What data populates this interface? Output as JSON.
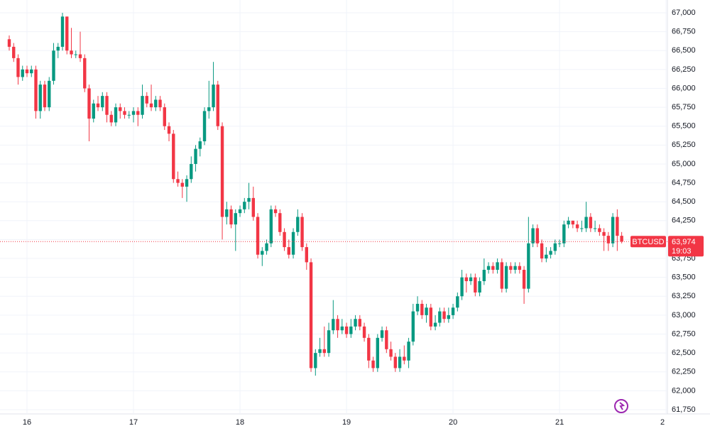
{
  "chart_data": {
    "type": "candlestick",
    "up_color": "#089981",
    "down_color": "#f23645",
    "grid": true,
    "xlim": [
      -4.8,
      143.5
    ],
    "ylim": [
      61750,
      67000
    ],
    "xticks": [
      {
        "value": 0,
        "label": "16"
      },
      {
        "value": 24,
        "label": "17"
      },
      {
        "value": 48,
        "label": "18"
      },
      {
        "value": 72,
        "label": "19"
      },
      {
        "value": 96,
        "label": "20"
      },
      {
        "value": 120,
        "label": "21"
      },
      {
        "value": 144,
        "label": "2"
      }
    ],
    "yticks": [
      {
        "value": 61750,
        "label": "61,750"
      },
      {
        "value": 62000,
        "label": "62,000"
      },
      {
        "value": 62250,
        "label": "62,250"
      },
      {
        "value": 62500,
        "label": "62,500"
      },
      {
        "value": 62750,
        "label": "62,750"
      },
      {
        "value": 63000,
        "label": "63,000"
      },
      {
        "value": 63250,
        "label": "63,250"
      },
      {
        "value": 63500,
        "label": "63,500"
      },
      {
        "value": 63750,
        "label": "63,750"
      },
      {
        "value": 64000,
        "label": "64,000"
      },
      {
        "value": 64250,
        "label": "64,250"
      },
      {
        "value": 64500,
        "label": "64,500"
      },
      {
        "value": 64750,
        "label": "64,750"
      },
      {
        "value": 65000,
        "label": "65,000"
      },
      {
        "value": 65250,
        "label": "65,250"
      },
      {
        "value": 65500,
        "label": "65,500"
      },
      {
        "value": 65750,
        "label": "65,750"
      },
      {
        "value": 66000,
        "label": "66,000"
      },
      {
        "value": 66250,
        "label": "66,250"
      },
      {
        "value": 66500,
        "label": "66,500"
      },
      {
        "value": 66750,
        "label": "66,750"
      },
      {
        "value": 67000,
        "label": "67,000"
      }
    ],
    "x": [
      -4,
      -3,
      -2,
      -1,
      0,
      1,
      2,
      3,
      4,
      5,
      6,
      7,
      8,
      9,
      10,
      11,
      12,
      13,
      14,
      15,
      16,
      17,
      18,
      19,
      20,
      21,
      22,
      23,
      24,
      25,
      26,
      27,
      28,
      29,
      30,
      31,
      32,
      33,
      34,
      35,
      36,
      37,
      38,
      39,
      40,
      41,
      42,
      43,
      44,
      45,
      46,
      47,
      48,
      49,
      50,
      51,
      52,
      53,
      54,
      55,
      56,
      57,
      58,
      59,
      60,
      61,
      62,
      63,
      64,
      65,
      66,
      67,
      68,
      69,
      70,
      71,
      72,
      73,
      74,
      75,
      76,
      77,
      78,
      79,
      80,
      81,
      82,
      83,
      84,
      85,
      86,
      87,
      88,
      89,
      90,
      91,
      92,
      93,
      94,
      95,
      96,
      97,
      98,
      99,
      100,
      101,
      102,
      103,
      104,
      105,
      106,
      107,
      108,
      109,
      110,
      111,
      112,
      113,
      114,
      115,
      116,
      117,
      118,
      119,
      120,
      121,
      122,
      123,
      124,
      125,
      126,
      127,
      128,
      129,
      130,
      131,
      132,
      133,
      134
    ],
    "series": [
      {
        "name": "BTCUSD",
        "last_label": "63,974",
        "countdown": "19:03",
        "ohlc": [
          [
            66650,
            66700,
            66500,
            66550
          ],
          [
            66550,
            66600,
            66350,
            66400
          ],
          [
            66400,
            66450,
            66050,
            66150
          ],
          [
            66150,
            66300,
            66100,
            66250
          ],
          [
            66250,
            66300,
            66150,
            66200
          ],
          [
            66200,
            66300,
            66150,
            66250
          ],
          [
            66250,
            66300,
            65600,
            65700
          ],
          [
            65700,
            66100,
            65600,
            66050
          ],
          [
            66050,
            66100,
            65700,
            65750
          ],
          [
            65750,
            66150,
            65700,
            66100
          ],
          [
            66100,
            66600,
            66050,
            66500
          ],
          [
            66500,
            66600,
            66400,
            66550
          ],
          [
            66550,
            67000,
            66500,
            66950
          ],
          [
            66950,
            66950,
            66450,
            66500
          ],
          [
            66500,
            66800,
            66400,
            66450
          ],
          [
            66450,
            66500,
            66400,
            66450
          ],
          [
            66450,
            66750,
            66350,
            66400
          ],
          [
            66400,
            66450,
            65950,
            66000
          ],
          [
            66000,
            66050,
            65300,
            65600
          ],
          [
            65600,
            65850,
            65550,
            65800
          ],
          [
            65800,
            65900,
            65700,
            65750
          ],
          [
            65750,
            65950,
            65700,
            65900
          ],
          [
            65900,
            65950,
            65550,
            65650
          ],
          [
            65650,
            65700,
            65500,
            65550
          ],
          [
            65550,
            65800,
            65500,
            65750
          ],
          [
            65750,
            65800,
            65600,
            65700
          ],
          [
            65700,
            65750,
            65600,
            65650
          ],
          [
            65650,
            65700,
            65600,
            65650
          ],
          [
            65650,
            65750,
            65550,
            65700
          ],
          [
            65700,
            65750,
            65500,
            65650
          ],
          [
            65650,
            66050,
            65600,
            65900
          ],
          [
            65900,
            65950,
            65750,
            65800
          ],
          [
            65800,
            66050,
            65700,
            65750
          ],
          [
            65750,
            65900,
            65700,
            65850
          ],
          [
            65850,
            65900,
            65700,
            65750
          ],
          [
            65750,
            65800,
            65450,
            65500
          ],
          [
            65500,
            65550,
            65300,
            65400
          ],
          [
            65400,
            65450,
            64750,
            64800
          ],
          [
            64800,
            64900,
            64700,
            64750
          ],
          [
            64750,
            64800,
            64550,
            64700
          ],
          [
            64700,
            64850,
            64500,
            64800
          ],
          [
            64800,
            65100,
            64750,
            65000
          ],
          [
            65000,
            65250,
            64900,
            65200
          ],
          [
            65200,
            65350,
            65100,
            65300
          ],
          [
            65300,
            65750,
            65250,
            65700
          ],
          [
            65700,
            66100,
            65600,
            65750
          ],
          [
            65750,
            66350,
            65700,
            66050
          ],
          [
            66050,
            66100,
            65450,
            65500
          ],
          [
            65500,
            65550,
            64000,
            64300
          ],
          [
            64300,
            64500,
            64200,
            64400
          ],
          [
            64400,
            64450,
            64150,
            64200
          ],
          [
            64200,
            64400,
            63850,
            64350
          ],
          [
            64350,
            64450,
            64300,
            64400
          ],
          [
            64400,
            64550,
            64350,
            64500
          ],
          [
            64500,
            64750,
            64400,
            64550
          ],
          [
            64550,
            64700,
            64250,
            64300
          ],
          [
            64300,
            64350,
            63750,
            63800
          ],
          [
            63800,
            63900,
            63650,
            63850
          ],
          [
            63850,
            64000,
            63800,
            63950
          ],
          [
            63950,
            64450,
            63900,
            64400
          ],
          [
            64400,
            64450,
            64300,
            64350
          ],
          [
            64350,
            64400,
            64050,
            64100
          ],
          [
            64100,
            64150,
            63850,
            63900
          ],
          [
            63900,
            64000,
            63750,
            63800
          ],
          [
            63800,
            64150,
            63750,
            64100
          ],
          [
            64100,
            64400,
            64050,
            64300
          ],
          [
            64300,
            64350,
            63850,
            63900
          ],
          [
            63900,
            63950,
            63600,
            63700
          ],
          [
            63700,
            63750,
            62250,
            62300
          ],
          [
            62300,
            62550,
            62200,
            62500
          ],
          [
            62500,
            62700,
            62450,
            62550
          ],
          [
            62550,
            62850,
            62450,
            62500
          ],
          [
            62500,
            62900,
            62450,
            62800
          ],
          [
            62800,
            63200,
            62750,
            62950
          ],
          [
            62950,
            63000,
            62700,
            62800
          ],
          [
            62800,
            62950,
            62750,
            62850
          ],
          [
            62850,
            62900,
            62700,
            62750
          ],
          [
            62750,
            62950,
            62700,
            62850
          ],
          [
            62850,
            63000,
            62800,
            62950
          ],
          [
            62950,
            63000,
            62800,
            62850
          ],
          [
            62850,
            62900,
            62650,
            62700
          ],
          [
            62700,
            62750,
            62300,
            62400
          ],
          [
            62400,
            62450,
            62250,
            62300
          ],
          [
            62300,
            62750,
            62250,
            62700
          ],
          [
            62700,
            62850,
            62650,
            62800
          ],
          [
            62800,
            62850,
            62500,
            62550
          ],
          [
            62550,
            62650,
            62400,
            62450
          ],
          [
            62450,
            62500,
            62250,
            62300
          ],
          [
            62300,
            62550,
            62250,
            62450
          ],
          [
            62450,
            62600,
            62350,
            62400
          ],
          [
            62400,
            62700,
            62300,
            62650
          ],
          [
            62650,
            63150,
            62600,
            63050
          ],
          [
            63050,
            63250,
            63000,
            63150
          ],
          [
            63150,
            63200,
            62950,
            63000
          ],
          [
            63000,
            63150,
            62900,
            63100
          ],
          [
            63100,
            63150,
            62800,
            62850
          ],
          [
            62850,
            63000,
            62800,
            62900
          ],
          [
            62900,
            63100,
            62850,
            63050
          ],
          [
            63050,
            63100,
            62900,
            62950
          ],
          [
            62950,
            63100,
            62900,
            63000
          ],
          [
            63000,
            63150,
            62950,
            63100
          ],
          [
            63100,
            63300,
            63050,
            63250
          ],
          [
            63250,
            63600,
            63200,
            63500
          ],
          [
            63500,
            63550,
            63300,
            63450
          ],
          [
            63450,
            63550,
            63400,
            63500
          ],
          [
            63500,
            63550,
            63250,
            63300
          ],
          [
            63300,
            63500,
            63250,
            63450
          ],
          [
            63450,
            63750,
            63400,
            63600
          ],
          [
            63600,
            63700,
            63550,
            63650
          ],
          [
            63650,
            63700,
            63550,
            63600
          ],
          [
            63600,
            63750,
            63550,
            63700
          ],
          [
            63700,
            63750,
            63300,
            63350
          ],
          [
            63350,
            63700,
            63300,
            63650
          ],
          [
            63650,
            63700,
            63550,
            63600
          ],
          [
            63600,
            63700,
            63550,
            63650
          ],
          [
            63650,
            63700,
            63550,
            63600
          ],
          [
            63600,
            63650,
            63150,
            63350
          ],
          [
            63350,
            64300,
            63300,
            63950
          ],
          [
            63950,
            64200,
            63900,
            64150
          ],
          [
            64150,
            64200,
            63900,
            63950
          ],
          [
            63950,
            64000,
            63700,
            63750
          ],
          [
            63750,
            63900,
            63700,
            63800
          ],
          [
            63800,
            63900,
            63750,
            63850
          ],
          [
            63850,
            64000,
            63800,
            63950
          ],
          [
            63950,
            64000,
            63900,
            63950
          ],
          [
            63950,
            64250,
            63900,
            64200
          ],
          [
            64200,
            64300,
            64150,
            64250
          ],
          [
            64250,
            64250,
            64150,
            64200
          ],
          [
            64200,
            64250,
            64100,
            64150
          ],
          [
            64150,
            64250,
            64100,
            64150
          ],
          [
            64150,
            64500,
            64100,
            64300
          ],
          [
            64300,
            64350,
            64100,
            64150
          ],
          [
            64150,
            64250,
            64100,
            64150
          ],
          [
            64150,
            64200,
            64050,
            64100
          ],
          [
            64100,
            64150,
            63850,
            64050
          ],
          [
            64050,
            64100,
            63850,
            63950
          ],
          [
            63950,
            64350,
            63900,
            64300
          ],
          [
            64300,
            64400,
            63850,
            64050
          ],
          [
            64050,
            64100,
            63950,
            63974
          ]
        ]
      }
    ]
  }
}
